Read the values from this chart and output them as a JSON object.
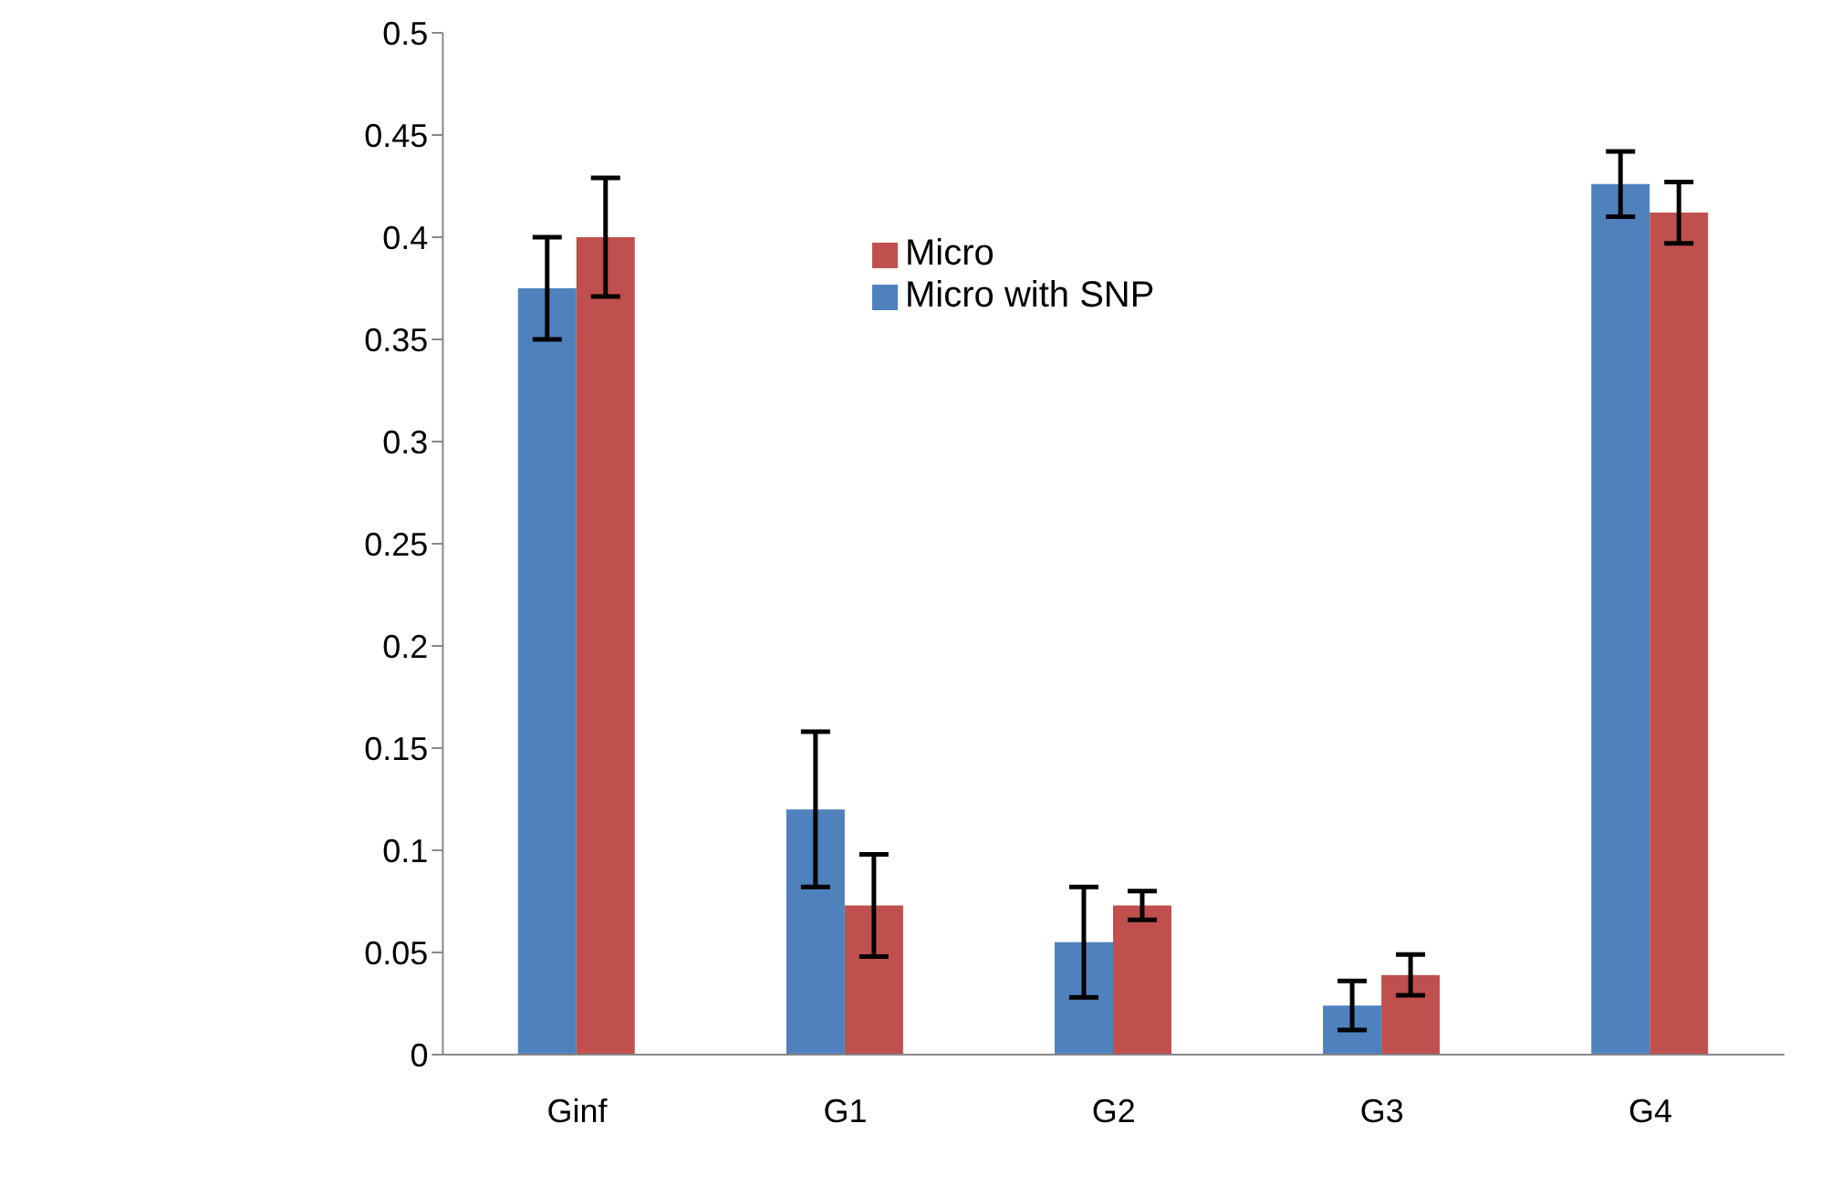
{
  "chart_data": {
    "type": "bar",
    "categories": [
      "Ginf",
      "G1",
      "G2",
      "G3",
      "G4"
    ],
    "series": [
      {
        "name": "Micro with SNP",
        "color": "#4f81bd",
        "values": [
          0.375,
          0.12,
          0.055,
          0.024,
          0.426
        ],
        "errors": [
          0.025,
          0.038,
          0.027,
          0.012,
          0.016
        ]
      },
      {
        "name": "Micro",
        "color": "#c0504d",
        "values": [
          0.4,
          0.073,
          0.073,
          0.039,
          0.412
        ],
        "errors": [
          0.029,
          0.025,
          0.007,
          0.01,
          0.015
        ]
      }
    ],
    "ylim": [
      0,
      0.5
    ],
    "yticks": [
      0,
      0.05,
      0.1,
      0.15,
      0.2,
      0.25,
      0.3,
      0.35,
      0.4,
      0.45,
      0.5
    ],
    "grid": false,
    "legend": "top"
  }
}
